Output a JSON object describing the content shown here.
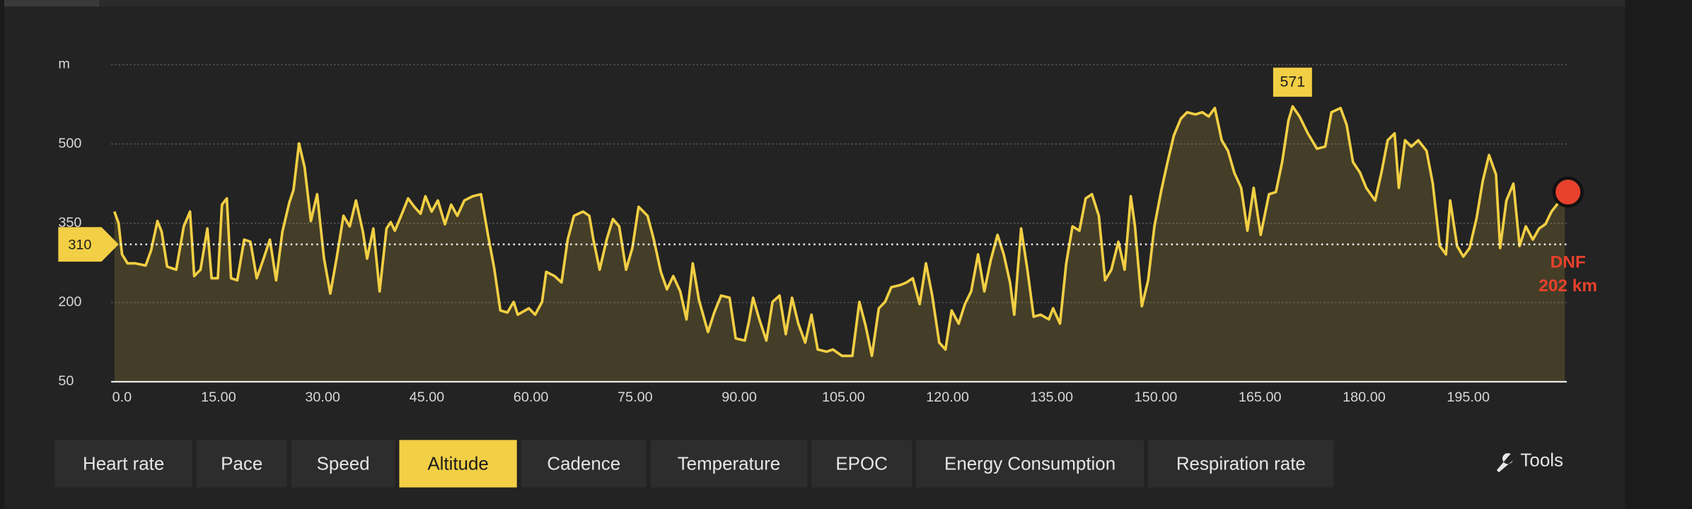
{
  "chart_data": {
    "type": "line",
    "color": "#f2cf44",
    "area_color": "rgba(242,207,68,0.16)",
    "x": [
      0.0,
      0.6,
      1.1,
      1.9,
      3.0,
      4.5,
      5.3,
      6.2,
      6.8,
      7.6,
      8.9,
      10.0,
      10.9,
      11.5,
      12.4,
      13.4,
      14.0,
      14.9,
      15.5,
      16.2,
      16.8,
      17.7,
      18.7,
      19.6,
      20.5,
      21.5,
      22.4,
      23.3,
      24.2,
      25.2,
      25.8,
      26.6,
      27.4,
      28.3,
      29.2,
      30.2,
      31.1,
      32.0,
      33.0,
      33.9,
      34.8,
      35.8,
      36.4,
      37.3,
      38.2,
      39.2,
      39.8,
      40.4,
      41.3,
      42.3,
      43.2,
      44.1,
      44.8,
      45.7,
      46.6,
      47.6,
      48.5,
      49.4,
      50.4,
      51.6,
      52.8,
      53.8,
      54.7,
      55.6,
      56.6,
      57.5,
      58.1,
      59.7,
      60.6,
      61.6,
      62.2,
      63.4,
      64.4,
      65.3,
      66.2,
      67.5,
      68.4,
      69.0,
      69.9,
      70.9,
      71.8,
      72.7,
      73.7,
      74.6,
      75.5,
      76.8,
      77.7,
      78.7,
      79.6,
      80.5,
      81.5,
      82.4,
      83.3,
      84.2,
      85.5,
      86.4,
      87.4,
      88.6,
      89.5,
      90.8,
      91.4,
      92.0,
      92.9,
      93.9,
      94.8,
      95.8,
      96.7,
      97.6,
      98.5,
      99.5,
      100.4,
      101.3,
      102.6,
      103.5,
      104.8,
      106.3,
      107.3,
      108.2,
      109.1,
      110.1,
      111.0,
      111.9,
      113.2,
      114.1,
      115.0,
      116.0,
      116.9,
      117.8,
      118.8,
      119.7,
      120.6,
      121.6,
      122.5,
      123.4,
      124.4,
      125.3,
      126.2,
      127.2,
      128.1,
      129.0,
      129.6,
      130.6,
      131.5,
      132.4,
      133.4,
      134.6,
      135.2,
      136.2,
      137.1,
      138.0,
      139.0,
      139.9,
      140.8,
      141.8,
      142.7,
      143.6,
      144.6,
      145.5,
      146.4,
      147.0,
      148.0,
      148.9,
      149.8,
      150.8,
      151.7,
      152.6,
      153.6,
      154.5,
      155.7,
      156.7,
      157.6,
      158.5,
      159.5,
      160.4,
      161.3,
      162.3,
      163.2,
      164.1,
      165.1,
      166.3,
      167.3,
      168.2,
      169.1,
      169.7,
      170.7,
      171.9,
      173.2,
      174.4,
      175.3,
      176.6,
      177.5,
      178.4,
      179.4,
      180.3,
      181.6,
      182.5,
      183.4,
      184.4,
      185.0,
      185.9,
      186.8,
      187.8,
      189.0,
      189.9,
      190.9,
      191.8,
      192.4,
      193.4,
      194.3,
      195.2,
      196.2,
      197.1,
      198.0,
      199.0,
      199.6,
      200.5,
      201.5,
      202.4,
      203.3,
      204.3,
      205.2,
      206.1,
      207.0,
      208.0,
      208.9
    ],
    "values": [
      372,
      350,
      291,
      274,
      274,
      270,
      299,
      354,
      334,
      268,
      262,
      344,
      372,
      250,
      262,
      340,
      246,
      246,
      385,
      397,
      246,
      242,
      319,
      315,
      246,
      283,
      319,
      242,
      334,
      389,
      413,
      501,
      456,
      354,
      405,
      283,
      217,
      283,
      364,
      344,
      393,
      334,
      283,
      340,
      221,
      340,
      352,
      336,
      364,
      397,
      381,
      368,
      401,
      372,
      393,
      348,
      385,
      364,
      393,
      401,
      405,
      328,
      266,
      185,
      181,
      201,
      177,
      189,
      177,
      201,
      258,
      250,
      238,
      319,
      364,
      372,
      364,
      319,
      262,
      319,
      358,
      344,
      262,
      303,
      381,
      364,
      319,
      258,
      225,
      250,
      221,
      168,
      274,
      205,
      144,
      181,
      213,
      209,
      132,
      128,
      164,
      209,
      168,
      128,
      201,
      213,
      140,
      209,
      160,
      124,
      177,
      111,
      107,
      111,
      99,
      99,
      201,
      156,
      99,
      189,
      201,
      229,
      233,
      238,
      246,
      197,
      274,
      213,
      124,
      111,
      185,
      160,
      197,
      221,
      291,
      221,
      279,
      328,
      291,
      238,
      177,
      340,
      262,
      173,
      177,
      168,
      189,
      160,
      274,
      344,
      336,
      397,
      405,
      364,
      242,
      262,
      315,
      262,
      401,
      344,
      193,
      242,
      344,
      413,
      466,
      516,
      548,
      560,
      556,
      560,
      552,
      568,
      507,
      487,
      446,
      417,
      336,
      417,
      328,
      405,
      409,
      466,
      544,
      571,
      552,
      520,
      491,
      495,
      560,
      568,
      536,
      466,
      446,
      417,
      393,
      446,
      507,
      520,
      417,
      507,
      495,
      507,
      487,
      425,
      307,
      291,
      393,
      307,
      287,
      303,
      360,
      430,
      479,
      442,
      303,
      393,
      425,
      307,
      344,
      319,
      340,
      348,
      372,
      389,
      409
    ],
    "xlim": [
      0,
      209.2
    ],
    "xticks": [
      {
        "value": 0,
        "label": "0.0"
      },
      {
        "value": 15,
        "label": "15.00"
      },
      {
        "value": 30,
        "label": "30.00"
      },
      {
        "value": 45,
        "label": "45.00"
      },
      {
        "value": 60,
        "label": "60.00"
      },
      {
        "value": 75,
        "label": "75.00"
      },
      {
        "value": 90,
        "label": "90.00"
      },
      {
        "value": 105,
        "label": "105.00"
      },
      {
        "value": 120,
        "label": "120.00"
      },
      {
        "value": 135,
        "label": "135.00"
      },
      {
        "value": 150,
        "label": "150.00"
      },
      {
        "value": 165,
        "label": "165.00"
      },
      {
        "value": 180,
        "label": "180.00"
      },
      {
        "value": 195,
        "label": "195.00"
      }
    ],
    "ylim": [
      50,
      650
    ],
    "yticks": [
      50,
      200,
      350,
      500,
      {
        "value": 650,
        "label": "m"
      }
    ],
    "grid": true,
    "reference_line": 310,
    "peak": 571,
    "end_label": [
      "DNF",
      "202 km"
    ],
    "end_color": "#e8412c"
  },
  "tabs": [
    "Heart rate",
    "Pace",
    "Speed",
    "Altitude",
    "Cadence",
    "Temperature",
    "EPOC",
    "Energy Consumption",
    "Respiration rate"
  ],
  "active_tab": "Altitude",
  "tools": "Tools"
}
